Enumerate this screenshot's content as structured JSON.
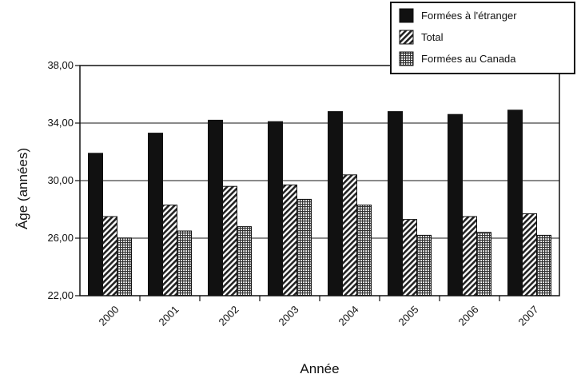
{
  "chart_data": {
    "type": "bar",
    "title": "",
    "xlabel": "Année",
    "ylabel": "Âge (années)",
    "categories": [
      "2000",
      "2001",
      "2002",
      "2003",
      "2004",
      "2005",
      "2006",
      "2007"
    ],
    "series": [
      {
        "name": "Formées à l'étranger",
        "values": [
          31.9,
          33.3,
          34.2,
          34.1,
          34.8,
          34.8,
          34.6,
          34.9
        ],
        "fill": "solid",
        "color": "#111111"
      },
      {
        "name": "Total",
        "values": [
          27.5,
          28.3,
          29.6,
          29.7,
          30.4,
          27.3,
          27.5,
          27.7
        ],
        "fill": "hatched",
        "color": "#333333"
      },
      {
        "name": "Formées au Canada",
        "values": [
          26.0,
          26.5,
          26.8,
          28.7,
          28.3,
          26.2,
          26.4,
          26.2
        ],
        "fill": "grid",
        "color": "#555555"
      }
    ],
    "ylim": [
      22,
      38
    ],
    "yticks": [
      "22,00",
      "26,00",
      "30,00",
      "34,00",
      "38,00"
    ],
    "ytick_values": [
      22,
      26,
      30,
      34,
      38
    ],
    "grid": true,
    "legend_position": "top-right"
  }
}
